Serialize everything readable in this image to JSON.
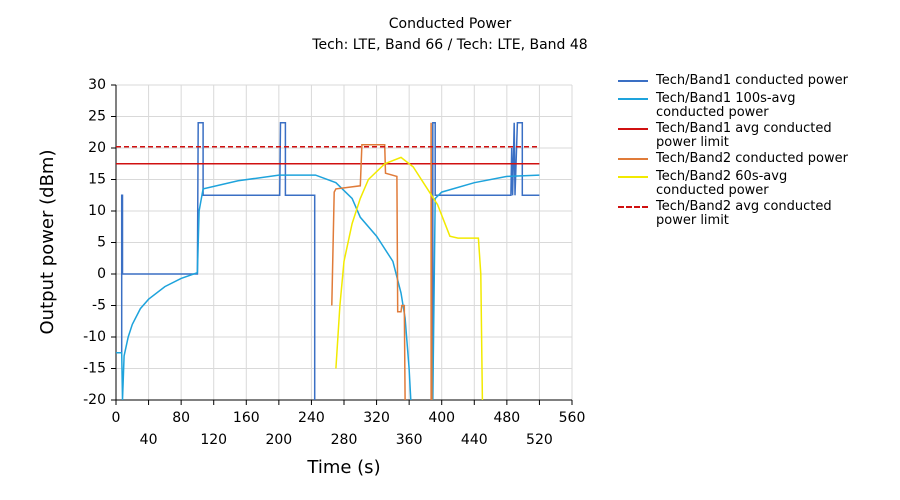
{
  "chart_data": {
    "type": "line",
    "title": "Conducted Power",
    "subtitle": "Tech: LTE, Band 66 / Tech: LTE, Band 48",
    "x_label": "Time (s)",
    "y_label": "Output power (dBm)",
    "xlim": [
      0,
      560
    ],
    "xticks": [
      0,
      40,
      80,
      120,
      160,
      200,
      240,
      280,
      320,
      360,
      400,
      440,
      480,
      520,
      560
    ],
    "ylim": [
      -20,
      30
    ],
    "yticks": [
      -20,
      -15,
      -10,
      -5,
      0,
      5,
      10,
      15,
      20,
      25,
      30
    ],
    "grid": true,
    "legend": "right",
    "series": [
      {
        "name": "Tech/Band1 conducted power",
        "color": "#3a6fc4",
        "dash": false,
        "x": [
          0,
          7,
          7,
          8,
          8,
          100,
          101,
          107,
          107,
          201,
          202,
          208,
          208,
          244,
          244,
          null,
          389,
          389,
          392,
          392,
          485,
          486,
          487,
          489,
          490,
          493,
          499,
          499,
          520
        ],
        "values": [
          -12.5,
          -12.5,
          12.5,
          12.5,
          0,
          0,
          24,
          24,
          12.5,
          12.5,
          24,
          24,
          12.5,
          12.5,
          -20,
          null,
          -20,
          24,
          24,
          12.5,
          12.5,
          20,
          12.5,
          24,
          12.5,
          24,
          24,
          12.5,
          12.5
        ]
      },
      {
        "name": "Tech/Band1 100s-avg conducted power",
        "color": "#1ea3dc",
        "dash": false,
        "x": [
          0,
          7,
          8,
          10,
          15,
          20,
          30,
          40,
          60,
          80,
          100,
          102,
          107,
          150,
          200,
          245,
          270,
          290,
          300,
          320,
          340,
          350,
          355,
          360,
          362,
          null,
          389,
          392,
          400,
          440,
          480,
          520
        ],
        "values": [
          -12.5,
          -12.5,
          -20,
          -13,
          -10,
          -8,
          -5.5,
          -4,
          -2,
          -0.7,
          0.2,
          10,
          13.5,
          14.8,
          15.7,
          15.7,
          14.5,
          12,
          9,
          6,
          2,
          -3,
          -7,
          -15,
          -20,
          null,
          -20,
          12,
          13,
          14.5,
          15.5,
          15.7
        ]
      },
      {
        "name": "Tech/Band1 avg conducted power limit",
        "color": "#d01010",
        "dash": false,
        "x": [
          0,
          520
        ],
        "values": [
          17.5,
          17.5
        ]
      },
      {
        "name": "Tech/Band2 conducted power",
        "color": "#e07b39",
        "dash": false,
        "x": [
          265,
          268,
          270,
          300,
          302,
          330,
          331,
          345,
          346,
          350,
          351,
          354,
          355,
          null,
          387,
          387,
          388
        ],
        "values": [
          -5,
          13,
          13.5,
          14,
          20.5,
          20.5,
          16,
          15.5,
          -6,
          -6,
          -5,
          -5,
          -20,
          null,
          -20,
          24,
          -20
        ]
      },
      {
        "name": "Tech/Band2 60s-avg conducted power",
        "color": "#f2ea00",
        "dash": false,
        "x": [
          270,
          275,
          280,
          290,
          300,
          310,
          330,
          350,
          365,
          380,
          395,
          410,
          420,
          445,
          448,
          450
        ],
        "values": [
          -15,
          -5,
          2,
          8,
          12,
          15,
          17.5,
          18.5,
          17,
          14,
          11,
          6,
          5.7,
          5.7,
          0,
          -20
        ]
      },
      {
        "name": "Tech/Band2 avg conducted power limit",
        "color": "#d01010",
        "dash": true,
        "x": [
          0,
          520
        ],
        "values": [
          20.2,
          20.2
        ]
      }
    ]
  }
}
